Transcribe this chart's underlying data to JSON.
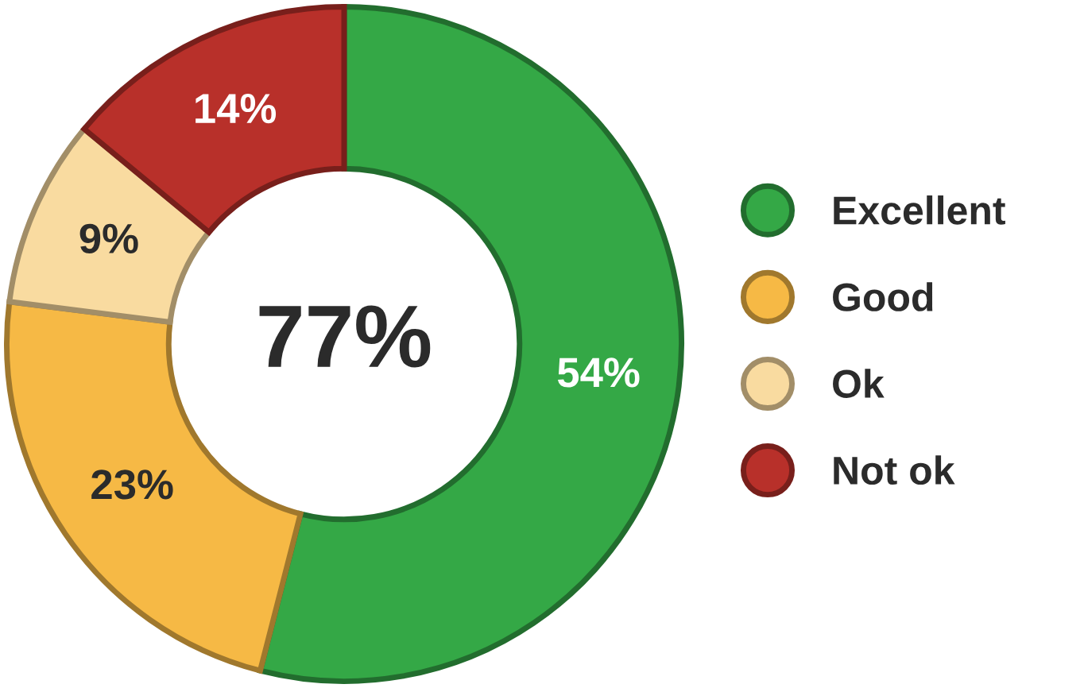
{
  "chart_data": {
    "type": "donut",
    "categories": [
      "Excellent",
      "Good",
      "Ok",
      "Not ok"
    ],
    "values": [
      54,
      23,
      9,
      14
    ],
    "colors": [
      "#34a846",
      "#f6b945",
      "#f9dba0",
      "#b8302a"
    ],
    "value_labels": [
      "54%",
      "23%",
      "9%",
      "14%"
    ],
    "annotations": [
      "77%"
    ],
    "legend": "right"
  }
}
